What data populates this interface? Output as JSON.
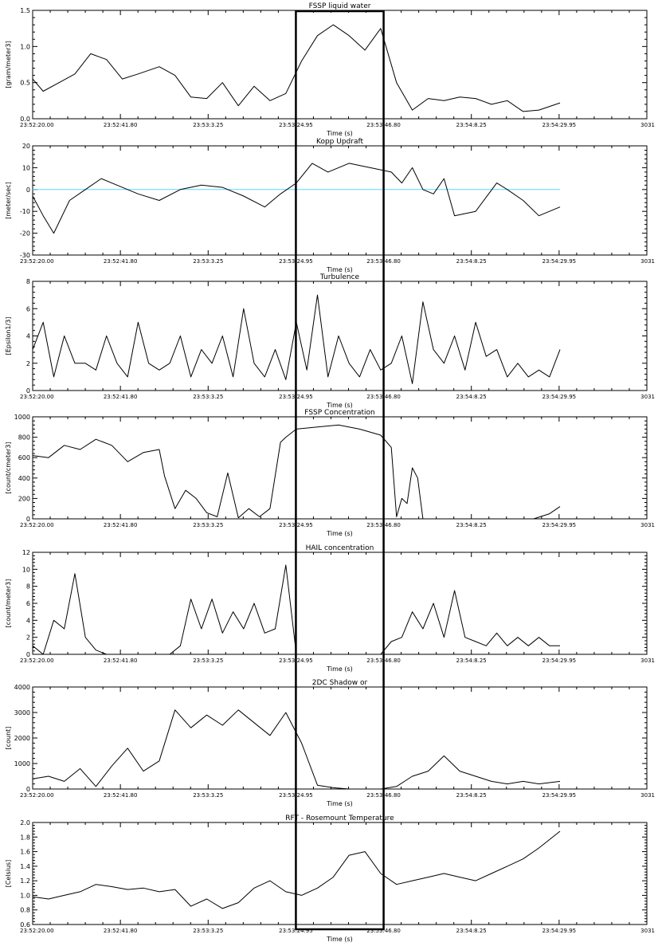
{
  "figure": {
    "highlight_box": {
      "x_start": "23:53:24.95",
      "x_end": "23:53:46.80"
    },
    "colors": {
      "axis": "#000000",
      "series": "#000000",
      "reference_line": "#5fd7ff"
    }
  },
  "chart_data": [
    {
      "type": "line",
      "title": "FSSP liquid water",
      "xlabel": "Time (s)",
      "ylabel": "[gram/meter3]",
      "xticks": [
        "23:52:20.00",
        "23:52:41.80",
        "23:53:3.25",
        "23:53:24.95",
        "23:53:46.80",
        "23:54:8.25",
        "23:54:29.95",
        "3031"
      ],
      "ylim": [
        0,
        1.5
      ],
      "yticks": [
        "0.0",
        "0.5",
        "1.0",
        "1.5"
      ],
      "x_fraction": [
        0.0,
        0.02,
        0.05,
        0.08,
        0.11,
        0.14,
        0.17,
        0.2,
        0.24,
        0.27,
        0.3,
        0.33,
        0.36,
        0.39,
        0.42,
        0.45,
        0.48,
        0.51,
        0.54,
        0.57,
        0.6,
        0.63,
        0.66,
        0.69,
        0.72,
        0.75,
        0.78,
        0.81,
        0.84,
        0.87,
        0.9,
        0.93,
        0.96,
        1.0
      ],
      "values": [
        0.55,
        0.38,
        0.5,
        0.62,
        0.9,
        0.82,
        0.55,
        0.62,
        0.72,
        0.6,
        0.3,
        0.28,
        0.5,
        0.18,
        0.45,
        0.25,
        0.35,
        0.8,
        1.15,
        1.3,
        1.15,
        0.95,
        1.25,
        0.5,
        0.12,
        0.28,
        0.25,
        0.3,
        0.28,
        0.2,
        0.25,
        0.1,
        0.12,
        0.22
      ]
    },
    {
      "type": "line",
      "title": "Kopp Updraft",
      "xlabel": "Time (s)",
      "ylabel": "[meter/sec]",
      "xticks": [
        "23:52:20.00",
        "23:52:41.80",
        "23:53:3.25",
        "23:53:24.95",
        "23:53:46.80",
        "23:54:8.25",
        "23:54:29.95",
        "3031"
      ],
      "ylim": [
        -30,
        20
      ],
      "yticks": [
        "-30",
        "-20",
        "-10",
        "0",
        "10",
        "20"
      ],
      "reference_line": 0,
      "x_fraction": [
        0.0,
        0.02,
        0.04,
        0.07,
        0.1,
        0.13,
        0.16,
        0.2,
        0.24,
        0.28,
        0.32,
        0.36,
        0.4,
        0.44,
        0.47,
        0.5,
        0.53,
        0.56,
        0.6,
        0.64,
        0.68,
        0.7,
        0.72,
        0.74,
        0.76,
        0.78,
        0.8,
        0.84,
        0.88,
        0.9,
        0.93,
        0.96,
        1.0
      ],
      "values": [
        -3,
        -12,
        -20,
        -5,
        0,
        5,
        2,
        -2,
        -5,
        0,
        2,
        1,
        -3,
        -8,
        -2,
        3,
        12,
        8,
        12,
        10,
        8,
        3,
        10,
        0,
        -2,
        5,
        -12,
        -10,
        3,
        0,
        -5,
        -12,
        -8
      ]
    },
    {
      "type": "line",
      "title": "Turbulence",
      "xlabel": "Time (s)",
      "ylabel": "[Epsilon1/3]",
      "xticks": [
        "23:52:20.00",
        "23:52:41.80",
        "23:53:3.25",
        "23:53:24.95",
        "23:53:46.80",
        "23:54:8.25",
        "23:54:29.95",
        "3031"
      ],
      "ylim": [
        0,
        8
      ],
      "yticks": [
        "0",
        "2",
        "4",
        "6",
        "8"
      ],
      "x_fraction": [
        0.0,
        0.02,
        0.04,
        0.06,
        0.08,
        0.1,
        0.12,
        0.14,
        0.16,
        0.18,
        0.2,
        0.22,
        0.24,
        0.26,
        0.28,
        0.3,
        0.32,
        0.34,
        0.36,
        0.38,
        0.4,
        0.42,
        0.44,
        0.46,
        0.48,
        0.5,
        0.52,
        0.54,
        0.56,
        0.58,
        0.6,
        0.62,
        0.64,
        0.66,
        0.68,
        0.7,
        0.72,
        0.74,
        0.76,
        0.78,
        0.8,
        0.82,
        0.84,
        0.86,
        0.88,
        0.9,
        0.92,
        0.94,
        0.96,
        0.98,
        1.0
      ],
      "values": [
        3,
        5,
        1,
        4,
        2,
        2,
        1.5,
        4,
        2,
        1,
        5,
        2,
        1.5,
        2,
        4,
        1,
        3,
        2,
        4,
        1,
        6,
        2,
        1,
        3,
        0.8,
        5,
        1.5,
        7,
        1,
        4,
        2,
        1,
        3,
        1.5,
        2,
        4,
        0.5,
        6.5,
        3,
        2,
        4,
        1.5,
        5,
        2.5,
        3,
        1,
        2,
        1,
        1.5,
        1,
        3
      ]
    },
    {
      "type": "line",
      "title": "FSSP Concentration",
      "xlabel": "Time (s)",
      "ylabel": "[count/cmeter3]",
      "xticks": [
        "23:52:20.00",
        "23:52:41.80",
        "23:53:3.25",
        "23:53:24.95",
        "23:53:46.80",
        "23:54:8.25",
        "23:54:29.95",
        "3031"
      ],
      "ylim": [
        0,
        1000
      ],
      "yticks": [
        "0",
        "200",
        "400",
        "600",
        "800",
        "1000"
      ],
      "x_fraction": [
        0.0,
        0.03,
        0.06,
        0.09,
        0.12,
        0.15,
        0.18,
        0.21,
        0.24,
        0.25,
        0.27,
        0.29,
        0.31,
        0.33,
        0.35,
        0.37,
        0.39,
        0.41,
        0.43,
        0.45,
        0.47,
        0.48,
        0.5,
        0.54,
        0.58,
        0.62,
        0.66,
        0.68,
        0.69,
        0.7,
        0.71,
        0.72,
        0.73,
        0.74,
        0.76,
        0.8,
        0.85,
        0.9,
        0.95,
        0.98,
        1.0
      ],
      "values": [
        620,
        600,
        720,
        680,
        780,
        720,
        560,
        650,
        680,
        420,
        100,
        280,
        200,
        60,
        20,
        450,
        10,
        100,
        20,
        100,
        750,
        800,
        880,
        900,
        920,
        880,
        820,
        700,
        20,
        200,
        150,
        500,
        400,
        0,
        0,
        0,
        0,
        0,
        0,
        50,
        120
      ]
    },
    {
      "type": "line",
      "title": "HAIL concentration",
      "xlabel": "Time (s)",
      "ylabel": "[count/meter3]",
      "xticks": [
        "23:52:20.00",
        "23:52:41.80",
        "23:53:3.25",
        "23:53:24.95",
        "23:53:46.80",
        "23:54:8.25",
        "23:54:29.95",
        "3031"
      ],
      "ylim": [
        0,
        12
      ],
      "yticks": [
        "0",
        "2",
        "4",
        "6",
        "8",
        "10",
        "12"
      ],
      "x_fraction": [
        0.0,
        0.02,
        0.04,
        0.06,
        0.08,
        0.1,
        0.12,
        0.14,
        0.16,
        0.18,
        0.2,
        0.22,
        0.24,
        0.26,
        0.28,
        0.3,
        0.32,
        0.34,
        0.36,
        0.38,
        0.4,
        0.42,
        0.44,
        0.46,
        0.48,
        0.5,
        0.52,
        0.54,
        0.56,
        0.58,
        0.6,
        0.62,
        0.64,
        0.66,
        0.68,
        0.7,
        0.72,
        0.74,
        0.76,
        0.78,
        0.8,
        0.82,
        0.84,
        0.86,
        0.88,
        0.9,
        0.92,
        0.94,
        0.96,
        0.98,
        1.0
      ],
      "values": [
        1,
        0,
        4,
        3,
        9.5,
        2,
        0.5,
        0,
        0,
        0,
        0,
        0,
        0,
        0,
        1,
        6.5,
        3,
        6.5,
        2.5,
        5,
        3,
        6,
        2.5,
        3,
        10.5,
        0,
        0,
        0,
        0,
        0,
        0,
        0,
        0,
        0,
        1.5,
        2,
        5,
        3,
        6,
        2,
        7.5,
        2,
        1.5,
        1,
        2.5,
        1,
        2,
        1,
        2,
        1,
        1
      ]
    },
    {
      "type": "line",
      "title": "2DC Shadow or",
      "xlabel": "Time (s)",
      "ylabel": "[count]",
      "xticks": [
        "23:52:20.00",
        "23:52:41.80",
        "23:53:3.25",
        "23:53:24.95",
        "23:53:46.80",
        "23:54:8.25",
        "23:54:29.95",
        "3031"
      ],
      "ylim": [
        0,
        4000
      ],
      "yticks": [
        "0",
        "1000",
        "2000",
        "3000",
        "4000"
      ],
      "x_fraction": [
        0.0,
        0.03,
        0.06,
        0.09,
        0.12,
        0.15,
        0.18,
        0.21,
        0.24,
        0.27,
        0.3,
        0.33,
        0.36,
        0.39,
        0.42,
        0.45,
        0.48,
        0.51,
        0.54,
        0.57,
        0.6,
        0.63,
        0.66,
        0.69,
        0.72,
        0.75,
        0.78,
        0.81,
        0.84,
        0.87,
        0.9,
        0.93,
        0.96,
        1.0
      ],
      "values": [
        400,
        500,
        300,
        800,
        100,
        900,
        1600,
        700,
        1100,
        3100,
        2400,
        2900,
        2500,
        3100,
        2600,
        2100,
        3000,
        1800,
        150,
        50,
        0,
        0,
        0,
        100,
        500,
        700,
        1300,
        700,
        500,
        300,
        200,
        300,
        200,
        300
      ]
    },
    {
      "type": "line",
      "title": "RFT - Rosemount Temperature",
      "xlabel": "Time (s)",
      "ylabel": "[Celsius]",
      "xticks": [
        "23:52:20.00",
        "23:52:41.80",
        "23:53:3.25",
        "23:53:24.95",
        "23:53:46.80",
        "23:54:8.25",
        "23:54:29.95",
        "3031"
      ],
      "ylim": [
        0.6,
        2.0
      ],
      "yticks": [
        "0.6",
        "0.8",
        "1.0",
        "1.2",
        "1.4",
        "1.6",
        "1.8",
        "2.0"
      ],
      "x_fraction": [
        0.0,
        0.03,
        0.06,
        0.09,
        0.12,
        0.15,
        0.18,
        0.21,
        0.24,
        0.27,
        0.3,
        0.33,
        0.36,
        0.39,
        0.42,
        0.45,
        0.48,
        0.51,
        0.54,
        0.57,
        0.6,
        0.63,
        0.66,
        0.69,
        0.72,
        0.75,
        0.78,
        0.81,
        0.84,
        0.87,
        0.9,
        0.93,
        0.96,
        1.0
      ],
      "values": [
        0.98,
        0.95,
        1.0,
        1.05,
        1.15,
        1.12,
        1.08,
        1.1,
        1.05,
        1.08,
        0.85,
        0.95,
        0.82,
        0.9,
        1.1,
        1.2,
        1.05,
        1.0,
        1.1,
        1.25,
        1.55,
        1.6,
        1.3,
        1.15,
        1.2,
        1.25,
        1.3,
        1.25,
        1.2,
        1.3,
        1.4,
        1.5,
        1.65,
        1.88
      ]
    }
  ]
}
